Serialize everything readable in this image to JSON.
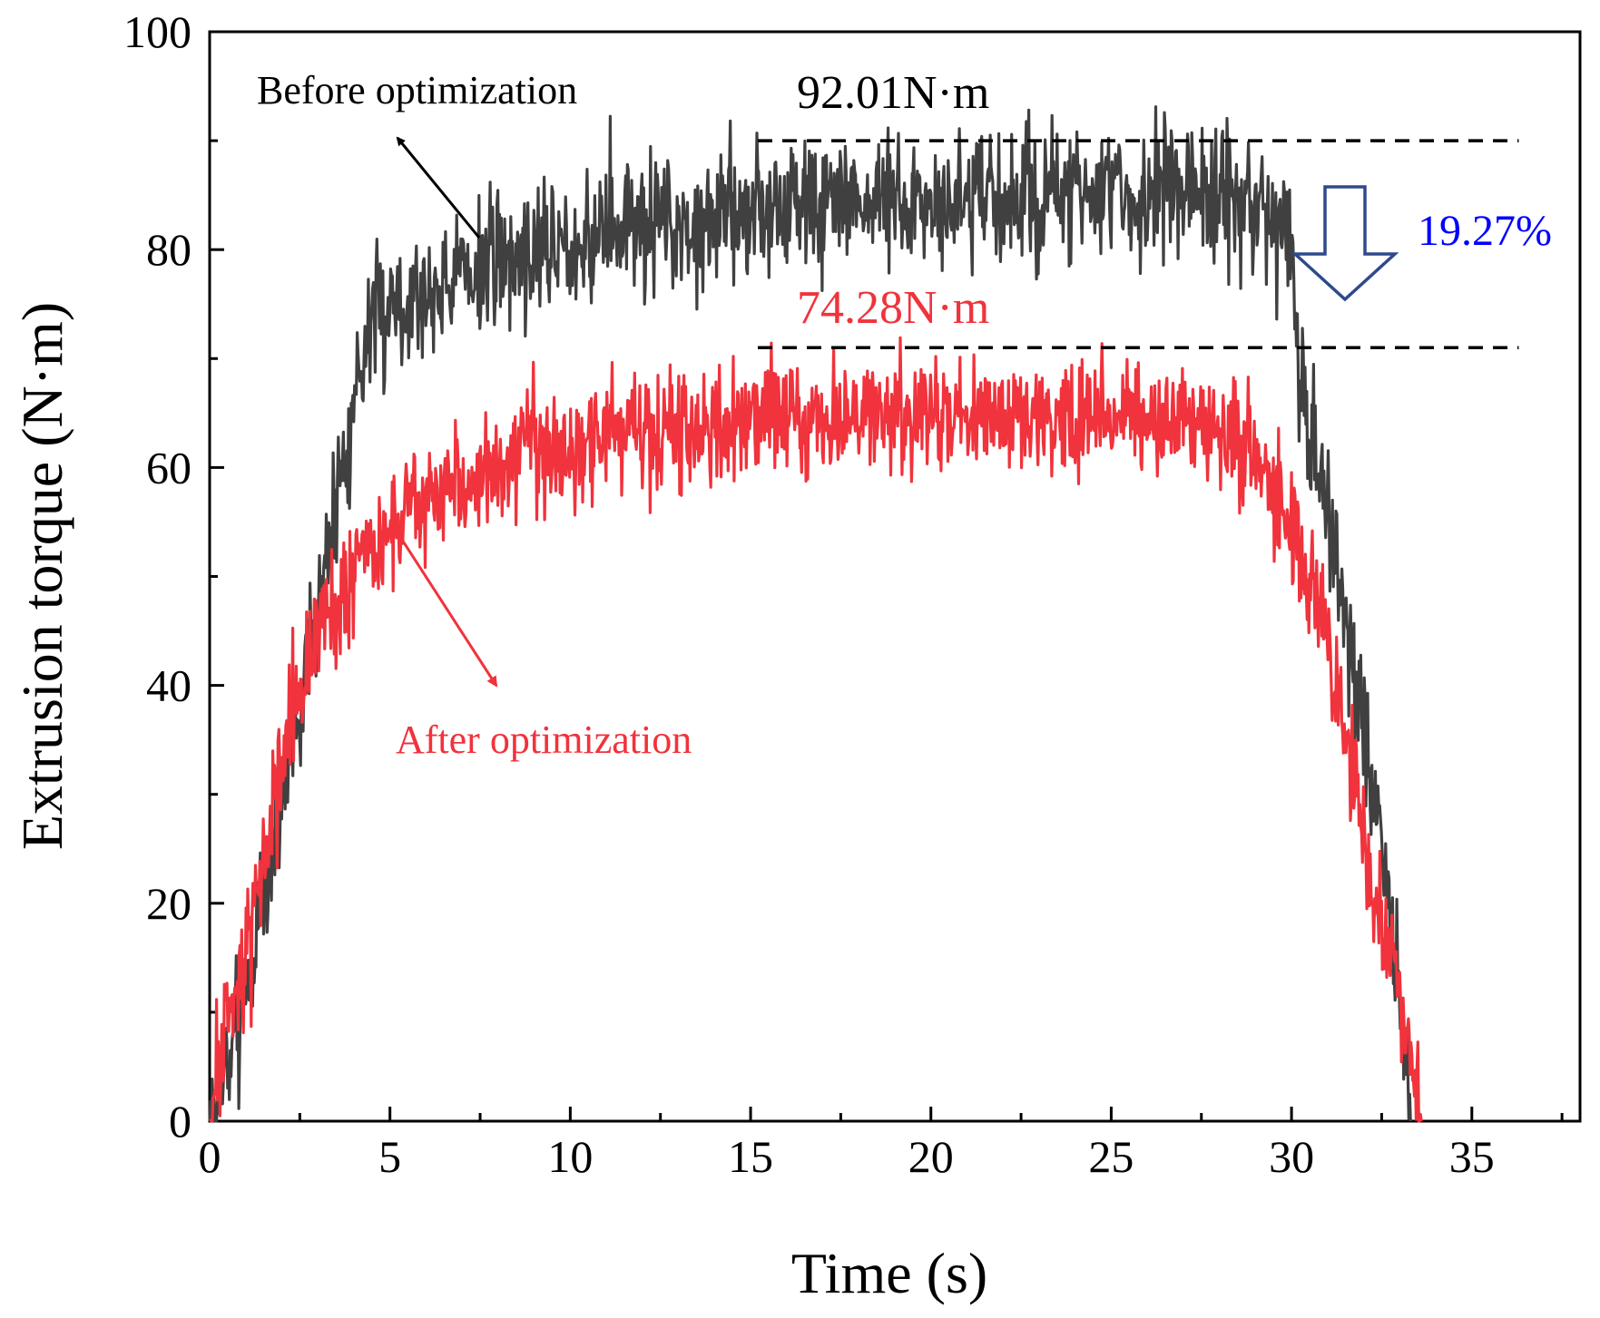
{
  "chart_data": {
    "type": "line",
    "title": "",
    "xlabel": "Time (s)",
    "ylabel": "Extrusion torque (N·m)",
    "xlim": [
      0,
      38
    ],
    "ylim": [
      0,
      100
    ],
    "xticks": [
      "0",
      "5",
      "10",
      "15",
      "20",
      "25",
      "30",
      "35"
    ],
    "yticks": [
      "0",
      "20",
      "40",
      "60",
      "80",
      "100"
    ],
    "grid": false,
    "series": [
      {
        "name": "Before optimization",
        "color": "#404040",
        "noise": 3.0,
        "seed": 7,
        "x": [
          0,
          0.5,
          1,
          1.5,
          2,
          2.5,
          3,
          3.5,
          4,
          4.5,
          5,
          6,
          7,
          8,
          9,
          10,
          12,
          14,
          16,
          18,
          20,
          22,
          24,
          26,
          27,
          28,
          29,
          29.8,
          30,
          30.2,
          30.5,
          31,
          31.5,
          32,
          32.5,
          33,
          33.3
        ],
        "values": [
          0,
          5,
          12,
          20,
          30,
          38,
          47,
          57,
          67,
          73,
          75,
          76,
          78,
          79,
          80,
          81,
          82,
          83,
          84,
          84.5,
          84.5,
          84.5,
          85,
          85,
          85.5,
          85,
          83,
          82,
          80,
          70,
          63,
          57,
          47,
          35,
          24,
          12,
          0
        ]
      },
      {
        "name": "After optimization",
        "color": "#f0333c",
        "noise": 2.6,
        "seed": 13,
        "x": [
          0,
          0.5,
          1,
          1.5,
          2,
          2.5,
          3,
          3.5,
          4,
          4.5,
          5,
          6,
          7,
          8,
          9,
          10,
          12,
          14,
          16,
          18,
          20,
          22,
          24,
          26,
          28,
          28.8,
          29.5,
          30,
          30.5,
          31,
          31.5,
          32,
          32.5,
          33,
          33.5,
          33.6
        ],
        "values": [
          0,
          10,
          15,
          24,
          33,
          40,
          45,
          48,
          50,
          52,
          54,
          57,
          59,
          60,
          61,
          62,
          63,
          64,
          64.5,
          65,
          65,
          65,
          64.5,
          64,
          63,
          62,
          58,
          54,
          50,
          44,
          36,
          26,
          18,
          10,
          4,
          0
        ]
      }
    ],
    "reference_lines": [
      {
        "value": 90,
        "x_start": 15.2,
        "x_end": 36.3,
        "style": "dashed"
      },
      {
        "value": 71,
        "x_start": 15.2,
        "x_end": 36.3,
        "style": "dashed"
      }
    ],
    "annotations": [
      {
        "text": "Before optimization",
        "color": "#000000"
      },
      {
        "text": "After optimization",
        "color": "#f0333c"
      },
      {
        "text": "92.01N·m",
        "color": "#000000"
      },
      {
        "text": "74.28N·m",
        "color": "#f0333c"
      },
      {
        "text": "19.27%",
        "color": "#0000ff"
      }
    ],
    "reduction_arrow_color": "#2e4a8c"
  }
}
